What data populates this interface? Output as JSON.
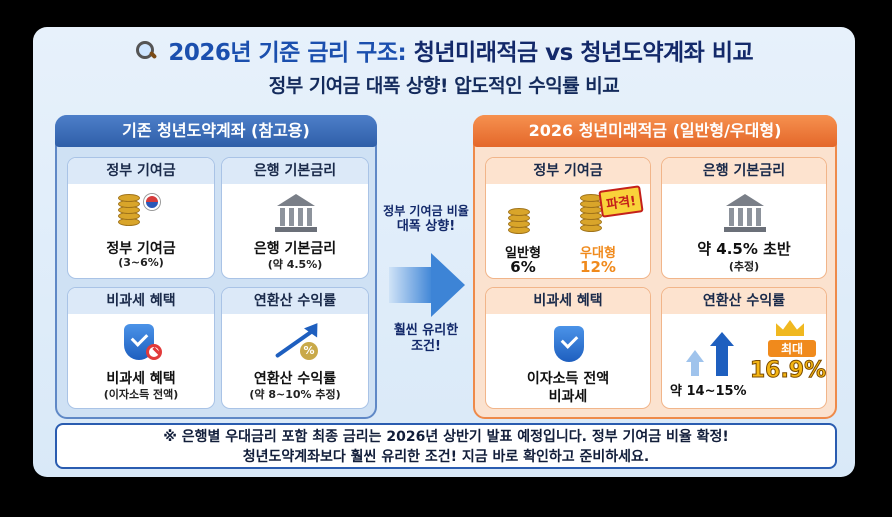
{
  "title": {
    "prefix": "2026년 기준 금리 구조:",
    "main": "청년미래적금 vs 청년도약계좌 비교"
  },
  "subtitle": "정부 기여금 대폭 상향! 압도적인 수익률 비교",
  "left_panel": {
    "header": "기존 청년도약계좌 (참고용)",
    "cards": [
      {
        "header": "정부 기여금",
        "label": "정부 기여금",
        "sub": "(3~6%)"
      },
      {
        "header": "은행 기본금리",
        "label": "은행 기본금리",
        "sub": "(약 4.5%)"
      },
      {
        "header": "비과세 혜택",
        "label": "비과세 혜택",
        "sub": "(이자소득 전액)"
      },
      {
        "header": "연환산 수익률",
        "label": "연환산 수익률",
        "sub": "(약 8~10% 추정)"
      }
    ]
  },
  "middle": {
    "top_line1": "정부 기여금 비율",
    "top_line2": "대폭 상향!",
    "bottom_line1": "훨씬 유리한",
    "bottom_line2": "조건!"
  },
  "right_panel": {
    "header": "2026 청년미래적금 (일반형/우대형)",
    "contribution": {
      "header": "정부 기여금",
      "badge": "파격!",
      "general_label": "일반형",
      "general_value": "6%",
      "preferred_label": "우대형",
      "preferred_value": "12%"
    },
    "bank_rate": {
      "header": "은행 기본금리",
      "label": "약 4.5% 초반",
      "sub": "(추정)"
    },
    "tax": {
      "header": "비과세 혜택",
      "label1": "이자소득 전액",
      "label2": "비과세"
    },
    "yield": {
      "header": "연환산 수익률",
      "range": "약 14~15%",
      "max_label": "최대",
      "max_value": "16.9%"
    }
  },
  "note": {
    "line1": "※ 은행별 우대금리 포함 최종 금리는 2026년 상반기 발표 예정입니다. 정부 기여금 비율 확정!",
    "line2": "청년도약계좌보다 훨씬 유리한 조건! 지금 바로 확인하고 준비하세요."
  },
  "colors": {
    "left_accent": "#2f5fa8",
    "right_accent": "#e4672a",
    "highlight": "#f08a1c"
  }
}
